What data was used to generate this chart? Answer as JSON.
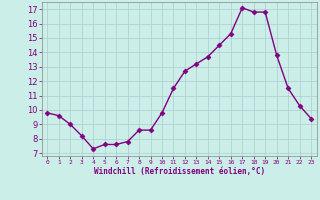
{
  "x": [
    0,
    1,
    2,
    3,
    4,
    5,
    6,
    7,
    8,
    9,
    10,
    11,
    12,
    13,
    14,
    15,
    16,
    17,
    18,
    19,
    20,
    21,
    22,
    23
  ],
  "y": [
    9.8,
    9.6,
    9.0,
    8.2,
    7.3,
    7.6,
    7.6,
    7.8,
    8.6,
    8.6,
    9.8,
    11.5,
    12.7,
    13.2,
    13.7,
    14.5,
    15.3,
    17.1,
    16.8,
    16.8,
    13.8,
    11.5,
    10.3,
    9.4
  ],
  "line_color": "#800080",
  "marker": "D",
  "marker_size": 2.5,
  "bg_color": "#cceee8",
  "grid_color": "#aacccc",
  "xlabel": "Windchill (Refroidissement éolien,°C)",
  "xlabel_color": "#800080",
  "tick_color": "#800080",
  "ylim": [
    6.8,
    17.5
  ],
  "yticks": [
    7,
    8,
    9,
    10,
    11,
    12,
    13,
    14,
    15,
    16,
    17
  ],
  "xlim": [
    -0.5,
    23.5
  ],
  "xticks": [
    0,
    1,
    2,
    3,
    4,
    5,
    6,
    7,
    8,
    9,
    10,
    11,
    12,
    13,
    14,
    15,
    16,
    17,
    18,
    19,
    20,
    21,
    22,
    23
  ],
  "linewidth": 1.0
}
